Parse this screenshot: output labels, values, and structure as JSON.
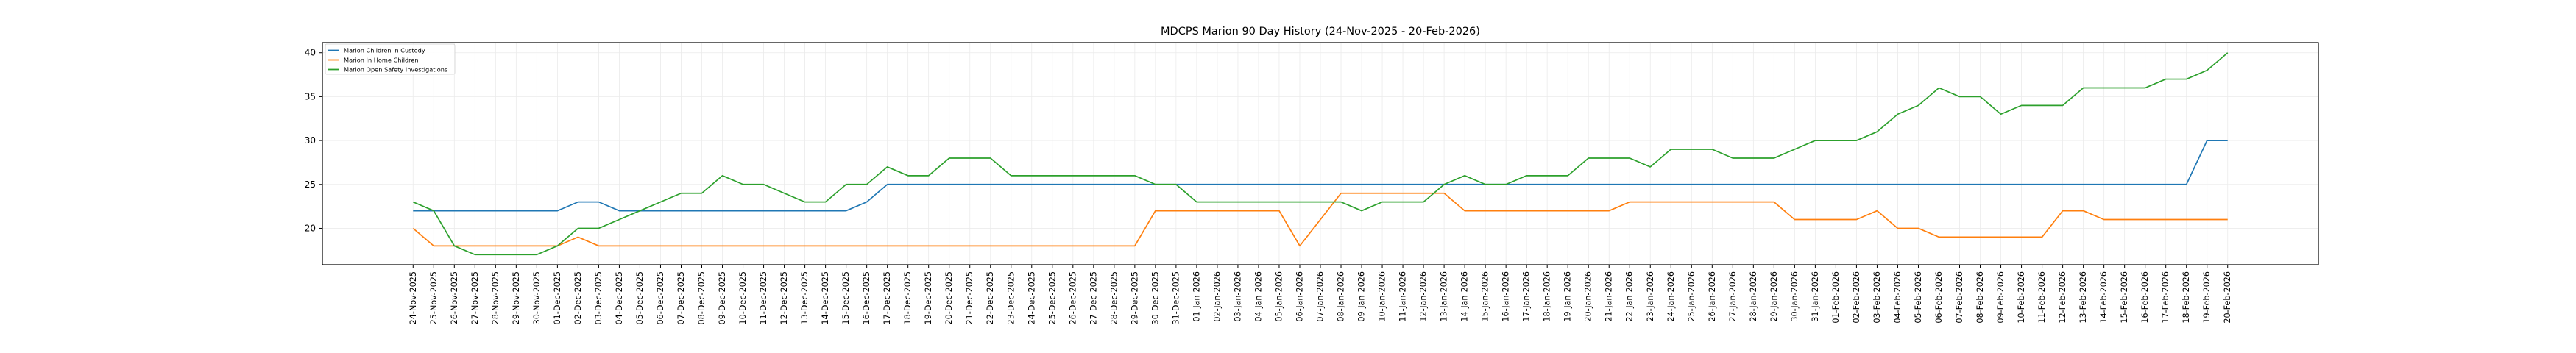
{
  "chart_data": {
    "type": "line",
    "title": "MDCPS Marion 90 Day History (24-Nov-2025 - 20-Feb-2026)",
    "xlabel": "",
    "ylabel": "",
    "ylim": [
      15.85,
      41.15
    ],
    "yticks": [
      20,
      25,
      30,
      35,
      40
    ],
    "grid": true,
    "legend_position": "top-left",
    "x": [
      "24-Nov-2025",
      "25-Nov-2025",
      "26-Nov-2025",
      "27-Nov-2025",
      "28-Nov-2025",
      "29-Nov-2025",
      "30-Nov-2025",
      "01-Dec-2025",
      "02-Dec-2025",
      "03-Dec-2025",
      "04-Dec-2025",
      "05-Dec-2025",
      "06-Dec-2025",
      "07-Dec-2025",
      "08-Dec-2025",
      "09-Dec-2025",
      "10-Dec-2025",
      "11-Dec-2025",
      "12-Dec-2025",
      "13-Dec-2025",
      "14-Dec-2025",
      "15-Dec-2025",
      "16-Dec-2025",
      "17-Dec-2025",
      "18-Dec-2025",
      "19-Dec-2025",
      "20-Dec-2025",
      "21-Dec-2025",
      "22-Dec-2025",
      "23-Dec-2025",
      "24-Dec-2025",
      "25-Dec-2025",
      "26-Dec-2025",
      "27-Dec-2025",
      "28-Dec-2025",
      "29-Dec-2025",
      "30-Dec-2025",
      "31-Dec-2025",
      "01-Jan-2026",
      "02-Jan-2026",
      "03-Jan-2026",
      "04-Jan-2026",
      "05-Jan-2026",
      "06-Jan-2026",
      "07-Jan-2026",
      "08-Jan-2026",
      "09-Jan-2026",
      "10-Jan-2026",
      "11-Jan-2026",
      "12-Jan-2026",
      "13-Jan-2026",
      "14-Jan-2026",
      "15-Jan-2026",
      "16-Jan-2026",
      "17-Jan-2026",
      "18-Jan-2026",
      "19-Jan-2026",
      "20-Jan-2026",
      "21-Jan-2026",
      "22-Jan-2026",
      "23-Jan-2026",
      "24-Jan-2026",
      "25-Jan-2026",
      "26-Jan-2026",
      "27-Jan-2026",
      "28-Jan-2026",
      "29-Jan-2026",
      "30-Jan-2026",
      "31-Jan-2026",
      "01-Feb-2026",
      "02-Feb-2026",
      "03-Feb-2026",
      "04-Feb-2026",
      "05-Feb-2026",
      "06-Feb-2026",
      "07-Feb-2026",
      "08-Feb-2026",
      "09-Feb-2026",
      "10-Feb-2026",
      "11-Feb-2026",
      "12-Feb-2026",
      "13-Feb-2026",
      "14-Feb-2026",
      "15-Feb-2026",
      "16-Feb-2026",
      "17-Feb-2026",
      "18-Feb-2026",
      "19-Feb-2026",
      "20-Feb-2026"
    ],
    "series": [
      {
        "name": "Marion Children in Custody",
        "color": "#1f77b4",
        "values": [
          22,
          22,
          22,
          22,
          22,
          22,
          22,
          22,
          23,
          23,
          22,
          22,
          22,
          22,
          22,
          22,
          22,
          22,
          22,
          22,
          22,
          22,
          23,
          25,
          25,
          25,
          25,
          25,
          25,
          25,
          25,
          25,
          25,
          25,
          25,
          25,
          25,
          25,
          25,
          25,
          25,
          25,
          25,
          25,
          25,
          25,
          25,
          25,
          25,
          25,
          25,
          25,
          25,
          25,
          25,
          25,
          25,
          25,
          25,
          25,
          25,
          25,
          25,
          25,
          25,
          25,
          25,
          25,
          25,
          25,
          25,
          25,
          25,
          25,
          25,
          25,
          25,
          25,
          25,
          25,
          25,
          25,
          25,
          25,
          25,
          25,
          25,
          30,
          30
        ]
      },
      {
        "name": "Marion In Home Children",
        "color": "#ff7f0e",
        "values": [
          20,
          18,
          18,
          18,
          18,
          18,
          18,
          18,
          19,
          18,
          18,
          18,
          18,
          18,
          18,
          18,
          18,
          18,
          18,
          18,
          18,
          18,
          18,
          18,
          18,
          18,
          18,
          18,
          18,
          18,
          18,
          18,
          18,
          18,
          18,
          18,
          22,
          22,
          22,
          22,
          22,
          22,
          22,
          18,
          21,
          24,
          24,
          24,
          24,
          24,
          24,
          22,
          22,
          22,
          22,
          22,
          22,
          22,
          22,
          23,
          23,
          23,
          23,
          23,
          23,
          23,
          23,
          21,
          21,
          21,
          21,
          22,
          20,
          20,
          19,
          19,
          19,
          19,
          19,
          19,
          22,
          22,
          21,
          21,
          21,
          21,
          21,
          21,
          21
        ]
      },
      {
        "name": "Marion Open Safety Investigations",
        "color": "#2ca02c",
        "values": [
          23,
          22,
          18,
          17,
          17,
          17,
          17,
          18,
          20,
          20,
          21,
          22,
          23,
          24,
          24,
          26,
          25,
          25,
          24,
          23,
          23,
          25,
          25,
          27,
          26,
          26,
          28,
          28,
          28,
          26,
          26,
          26,
          26,
          26,
          26,
          26,
          25,
          25,
          23,
          23,
          23,
          23,
          23,
          23,
          23,
          23,
          22,
          23,
          23,
          23,
          25,
          26,
          25,
          25,
          26,
          26,
          26,
          28,
          28,
          28,
          27,
          29,
          29,
          29,
          28,
          28,
          28,
          29,
          30,
          30,
          30,
          31,
          33,
          34,
          36,
          35,
          35,
          33,
          34,
          34,
          34,
          36,
          36,
          36,
          36,
          37,
          37,
          38,
          40
        ]
      }
    ]
  }
}
